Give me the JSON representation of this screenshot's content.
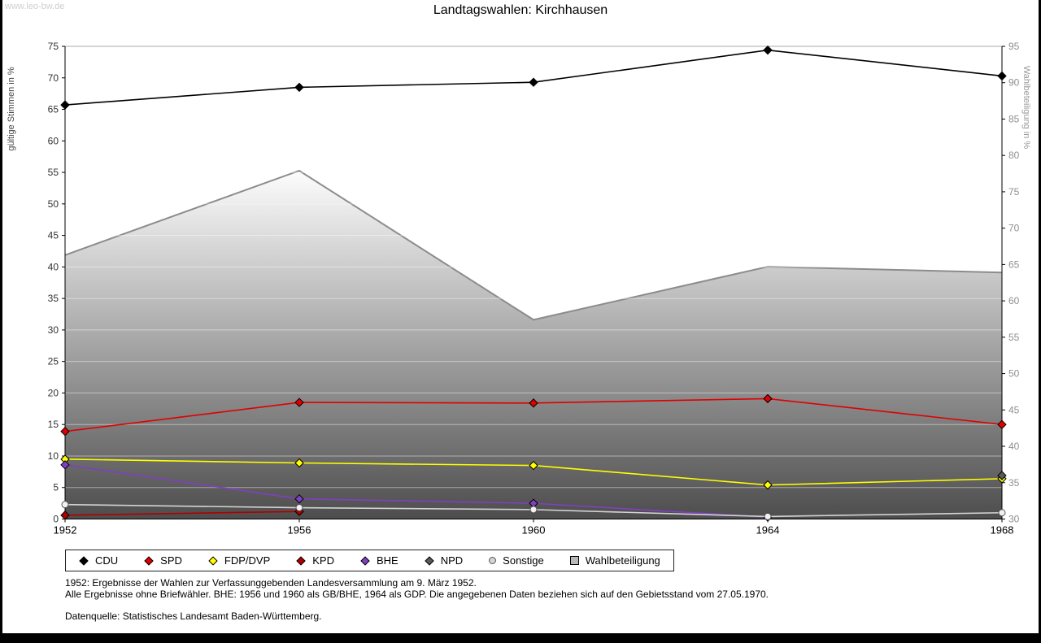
{
  "watermark": "www.leo-bw.de",
  "chart_data": {
    "type": "line",
    "title": "Landtagswahlen: Kirchhausen",
    "x_categories": [
      "1952",
      "1956",
      "1960",
      "1964",
      "1968"
    ],
    "axes": {
      "left": {
        "label": "gültige Stimmen in %",
        "min": 0,
        "max": 75,
        "step": 5
      },
      "right": {
        "label": "Wahlbeteiligung in %",
        "min": 30,
        "max": 95,
        "step": 5
      }
    },
    "grid": "horizontal",
    "legend_position": "bottom",
    "area_series": {
      "name": "Wahlbeteiligung",
      "axis": "right",
      "color_top": "#fdfdfd",
      "color_bottom": "#4d4d4d",
      "stroke": "#8c8c8c",
      "legend_color": "#b8b8b8",
      "values": [
        66.3,
        77.9,
        57.4,
        64.7,
        63.9
      ]
    },
    "series": [
      {
        "name": "CDU",
        "color": "#000000",
        "marker": "diamond",
        "values": [
          65.7,
          68.5,
          69.3,
          74.4,
          70.3
        ]
      },
      {
        "name": "SPD",
        "color": "#e00000",
        "marker": "diamond",
        "values": [
          13.9,
          18.5,
          18.4,
          19.1,
          15.0
        ]
      },
      {
        "name": "FDP/DVP",
        "color": "#ffff00",
        "marker": "diamond",
        "values": [
          9.5,
          8.9,
          8.5,
          5.4,
          6.4
        ]
      },
      {
        "name": "KPD",
        "color": "#b00000",
        "marker": "diamond",
        "values": [
          0.6,
          1.2,
          null,
          null,
          null
        ]
      },
      {
        "name": "BHE",
        "color": "#8040c0",
        "marker": "diamond",
        "values": [
          8.6,
          3.2,
          2.5,
          0.3,
          null
        ]
      },
      {
        "name": "NPD",
        "color": "#5a5a5a",
        "marker": "diamond",
        "values": [
          null,
          null,
          null,
          null,
          6.9
        ]
      },
      {
        "name": "Sonstige",
        "color": "#d4d4d4",
        "marker": "circle",
        "values": [
          2.3,
          1.8,
          1.5,
          0.4,
          1.0
        ]
      }
    ]
  },
  "footer": {
    "notes": [
      "1952: Ergebnisse der Wahlen zur Verfassunggebenden Landesversammlung am 9. März 1952.",
      "Alle Ergebnisse ohne Briefwähler. BHE: 1956 und 1960 als GB/BHE, 1964 als GDP. Die angegebenen Daten beziehen sich auf den Gebietsstand vom 27.05.1970."
    ],
    "source": "Datenquelle: Statistisches Landesamt Baden-Württemberg."
  }
}
